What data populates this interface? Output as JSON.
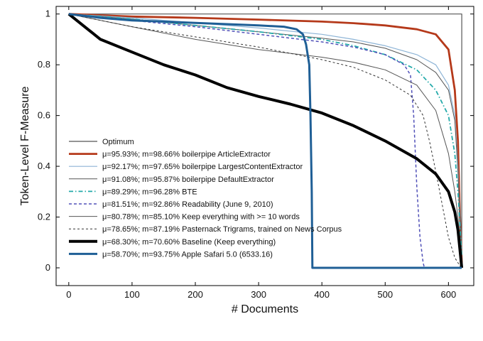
{
  "chart_data": {
    "type": "line",
    "xlabel": "# Documents",
    "ylabel": "Token-Level F-Measure",
    "xlim": [
      -20,
      640
    ],
    "ylim": [
      -0.07,
      1.03
    ],
    "x_ticks": [
      "0",
      "100",
      "200",
      "300",
      "400",
      "500",
      "600"
    ],
    "x_tick_values": [
      0,
      100,
      200,
      300,
      400,
      500,
      600
    ],
    "y_ticks": [
      "0",
      "0.2",
      "0.4",
      "0.6",
      "0.8",
      "1"
    ],
    "y_tick_values": [
      0,
      0.2,
      0.4,
      0.6,
      0.8,
      1
    ],
    "legend_position": "lower-left",
    "series": [
      {
        "name": "Optimum",
        "color": "#555555",
        "width": 1.2,
        "dash": "",
        "x": [
          0,
          621,
          621
        ],
        "y": [
          1.0,
          1.0,
          0.0
        ]
      },
      {
        "name": "μ=95.93%; m=98.66%  boilerpipe ArticleExtractor",
        "color": "#b5391a",
        "width": 2.8,
        "dash": "",
        "x": [
          0,
          100,
          200,
          300,
          400,
          450,
          500,
          550,
          580,
          600,
          610,
          615,
          618,
          621
        ],
        "y": [
          1.0,
          0.99,
          0.985,
          0.978,
          0.97,
          0.964,
          0.955,
          0.94,
          0.92,
          0.86,
          0.7,
          0.5,
          0.22,
          0.02
        ]
      },
      {
        "name": "μ=92.17%; m=97.65%  boilerpipe LargestContentExtractor",
        "color": "#8db4d6",
        "width": 1.2,
        "dash": "",
        "x": [
          0,
          100,
          200,
          300,
          400,
          450,
          500,
          550,
          580,
          600,
          610,
          615,
          621
        ],
        "y": [
          1.0,
          0.985,
          0.965,
          0.945,
          0.92,
          0.9,
          0.875,
          0.84,
          0.8,
          0.72,
          0.6,
          0.4,
          0.05
        ]
      },
      {
        "name": "μ=91.08%; m=95.87%  boilerpipe DefaultExtractor",
        "color": "#555555",
        "width": 1.0,
        "dash": "",
        "x": [
          0,
          100,
          200,
          300,
          400,
          450,
          500,
          550,
          580,
          600,
          610,
          615,
          621
        ],
        "y": [
          1.0,
          0.98,
          0.955,
          0.93,
          0.905,
          0.89,
          0.865,
          0.82,
          0.77,
          0.7,
          0.58,
          0.38,
          0.05
        ]
      },
      {
        "name": "μ=89.29%; m=96.28%  BTE",
        "color": "#24aaaa",
        "width": 1.8,
        "dash": "6,3,1.5,3",
        "x": [
          0,
          100,
          200,
          300,
          400,
          450,
          500,
          550,
          580,
          600,
          610,
          615,
          621
        ],
        "y": [
          1.0,
          0.98,
          0.955,
          0.93,
          0.9,
          0.875,
          0.84,
          0.78,
          0.7,
          0.6,
          0.45,
          0.3,
          0.05
        ]
      },
      {
        "name": "μ=81.51%; m=92.86%  Readability (June 9, 2010)",
        "color": "#5050b8",
        "width": 1.5,
        "dash": "4,3",
        "x": [
          0,
          100,
          200,
          300,
          400,
          450,
          500,
          530,
          540,
          545,
          550,
          555,
          560,
          562
        ],
        "y": [
          1.0,
          0.975,
          0.95,
          0.92,
          0.89,
          0.87,
          0.84,
          0.8,
          0.76,
          0.6,
          0.32,
          0.12,
          0.02,
          0.0
        ]
      },
      {
        "name": "μ=80.78%; m=85.10%  Keep everything with >= 10 words",
        "color": "#555555",
        "width": 1.0,
        "dash": "",
        "x": [
          0,
          100,
          200,
          300,
          400,
          450,
          500,
          550,
          580,
          600,
          610,
          615,
          621
        ],
        "y": [
          1.0,
          0.95,
          0.9,
          0.86,
          0.83,
          0.81,
          0.78,
          0.72,
          0.62,
          0.45,
          0.3,
          0.2,
          0.02
        ]
      },
      {
        "name": "μ=78.65%; m=87.19%  Pasternack Trigrams, trained on News Corpus",
        "color": "#333333",
        "width": 1.0,
        "dash": "3,3",
        "x": [
          0,
          100,
          200,
          300,
          400,
          450,
          500,
          540,
          560,
          570,
          580,
          590,
          600,
          610,
          620
        ],
        "y": [
          1.0,
          0.95,
          0.91,
          0.87,
          0.82,
          0.79,
          0.74,
          0.68,
          0.6,
          0.5,
          0.38,
          0.25,
          0.12,
          0.04,
          0.0
        ]
      },
      {
        "name": "μ=68.30%; m=70.60%  Baseline (Keep everything)",
        "color": "#000000",
        "width": 4.0,
        "dash": "",
        "x": [
          0,
          50,
          100,
          150,
          200,
          250,
          300,
          350,
          400,
          450,
          500,
          550,
          580,
          600,
          610,
          615,
          621
        ],
        "y": [
          1.0,
          0.9,
          0.85,
          0.8,
          0.76,
          0.71,
          0.675,
          0.645,
          0.61,
          0.56,
          0.5,
          0.43,
          0.37,
          0.3,
          0.22,
          0.15,
          0.0
        ]
      },
      {
        "name": "μ=58.70%; m=93.75%  Apple Safari 5.0 (6533.16)",
        "color": "#1f5f96",
        "width": 3.0,
        "dash": "",
        "x": [
          0,
          50,
          100,
          200,
          300,
          340,
          360,
          370,
          375,
          380,
          382,
          384,
          385,
          621
        ],
        "y": [
          1.0,
          0.985,
          0.975,
          0.965,
          0.955,
          0.95,
          0.94,
          0.92,
          0.88,
          0.8,
          0.6,
          0.3,
          0.0,
          0.0
        ]
      }
    ]
  }
}
